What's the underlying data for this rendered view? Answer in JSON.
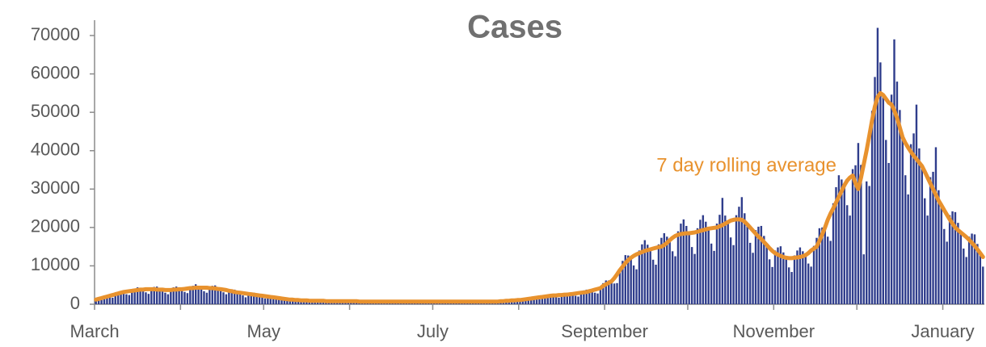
{
  "chart_data": {
    "type": "bar",
    "title": "Cases",
    "xlim": [
      0,
      321
    ],
    "xticks": [
      {
        "value": 0,
        "label": "March"
      },
      {
        "value": 61,
        "label": "May"
      },
      {
        "value": 122,
        "label": "July"
      },
      {
        "value": 184,
        "label": "September"
      },
      {
        "value": 245,
        "label": "November"
      },
      {
        "value": 306,
        "label": "January"
      }
    ],
    "minor_xticks": [
      31,
      92,
      153,
      214,
      275
    ],
    "ylim": [
      0,
      74000
    ],
    "yticks": [
      0,
      10000,
      20000,
      30000,
      40000,
      50000,
      60000,
      70000
    ],
    "series": [
      {
        "type": "bar",
        "color": "#2f3d8c",
        "values": [
          1300,
          1600,
          1900,
          2000,
          2000,
          1800,
          1700,
          2700,
          3200,
          3300,
          3200,
          2600,
          2400,
          3700,
          4100,
          4400,
          4200,
          3800,
          3100,
          2700,
          4100,
          4500,
          4600,
          4200,
          3800,
          3000,
          2600,
          3900,
          4400,
          4600,
          4300,
          3900,
          3200,
          2900,
          4400,
          4800,
          5200,
          4700,
          4300,
          3400,
          3000,
          4400,
          4800,
          4900,
          4400,
          4000,
          3100,
          2600,
          3700,
          3900,
          3800,
          3400,
          3000,
          2300,
          1800,
          2800,
          3000,
          3000,
          2600,
          2300,
          1800,
          1500,
          2100,
          2200,
          2200,
          2000,
          1600,
          1300,
          1000,
          1400,
          1400,
          1300,
          1200,
          1000,
          800,
          700,
          1100,
          1000,
          1100,
          1000,
          900,
          700,
          600,
          800,
          900,
          1000,
          900,
          800,
          600,
          600,
          500,
          700,
          800,
          800,
          800,
          700,
          600,
          500,
          700,
          800,
          800,
          800,
          700,
          600,
          500,
          700,
          800,
          800,
          800,
          700,
          600,
          500,
          700,
          800,
          800,
          800,
          700,
          600,
          500,
          700,
          800,
          800,
          800,
          700,
          600,
          500,
          700,
          800,
          800,
          800,
          700,
          600,
          500,
          700,
          800,
          800,
          800,
          700,
          600,
          500,
          700,
          800,
          800,
          800,
          700,
          600,
          500,
          700,
          800,
          800,
          1100,
          1000,
          900,
          800,
          1300,
          1500,
          1700,
          1700,
          1600,
          1400,
          1300,
          2000,
          2300,
          2500,
          2400,
          2300,
          1800,
          1700,
          2500,
          2900,
          3000,
          2900,
          2700,
          2200,
          2000,
          3200,
          3600,
          3800,
          3700,
          3600,
          3000,
          2800,
          4400,
          5500,
          6200,
          6200,
          6000,
          5400,
          5500,
          9300,
          11300,
          12800,
          12700,
          12100,
          10100,
          9100,
          14000,
          15600,
          16700,
          15500,
          14300,
          11600,
          10300,
          15600,
          17300,
          18500,
          17600,
          16700,
          13800,
          12500,
          19000,
          21000,
          22100,
          20400,
          18500,
          14900,
          13100,
          19800,
          22000,
          23200,
          21500,
          19700,
          15800,
          13900,
          21000,
          23300,
          27700,
          23100,
          21400,
          17400,
          15400,
          23200,
          25400,
          27900,
          23700,
          20800,
          16000,
          13400,
          19300,
          20200,
          20400,
          17800,
          15400,
          11700,
          9700,
          14000,
          14800,
          15100,
          13500,
          12100,
          9600,
          8400,
          12700,
          14000,
          14800,
          13800,
          12800,
          10600,
          9800,
          15200,
          17300,
          19800,
          20000,
          20000,
          17600,
          16500,
          26300,
          30500,
          33600,
          32500,
          31000,
          25800,
          23100,
          35200,
          36200,
          42000,
          36300,
          13000,
          32000,
          30800,
          50400,
          59200,
          72000,
          63000,
          54500,
          42800,
          36800,
          54600,
          69000,
          58000,
          50600,
          43500,
          33600,
          28600,
          41700,
          44500,
          52000,
          40600,
          36000,
          27600,
          23100,
          33100,
          34500,
          40900,
          29700,
          25800,
          19600,
          16300,
          23200,
          24200,
          24000,
          21200,
          18700,
          14500,
          12300,
          17600,
          18400,
          18200,
          15700,
          13300,
          9800
        ]
      },
      {
        "type": "line",
        "name": "7 day rolling average",
        "color": "#e8922e",
        "values": [
          1200,
          1400,
          1600,
          1800,
          2000,
          2200,
          2400,
          2600,
          2800,
          3000,
          3200,
          3300,
          3400,
          3500,
          3600,
          3700,
          3800,
          3800,
          3900,
          3900,
          3900,
          3900,
          3800,
          3800,
          3800,
          3700,
          3700,
          3700,
          3800,
          3800,
          3900,
          3900,
          4000,
          4100,
          4200,
          4200,
          4300,
          4300,
          4300,
          4300,
          4300,
          4200,
          4200,
          4100,
          4000,
          3900,
          3800,
          3700,
          3500,
          3400,
          3200,
          3100,
          3000,
          2900,
          2800,
          2700,
          2600,
          2500,
          2400,
          2300,
          2200,
          2100,
          2000,
          1900,
          1800,
          1700,
          1600,
          1500,
          1400,
          1300,
          1200,
          1200,
          1100,
          1100,
          1000,
          1000,
          1000,
          900,
          900,
          900,
          900,
          900,
          900,
          800,
          800,
          800,
          800,
          800,
          800,
          800,
          800,
          800,
          800,
          800,
          800,
          700,
          700,
          700,
          700,
          700,
          700,
          700,
          700,
          700,
          700,
          700,
          700,
          700,
          700,
          700,
          700,
          700,
          700,
          700,
          700,
          700,
          700,
          700,
          700,
          700,
          700,
          700,
          700,
          700,
          700,
          700,
          700,
          700,
          700,
          700,
          700,
          700,
          700,
          700,
          700,
          700,
          700,
          700,
          700,
          700,
          700,
          700,
          700,
          700,
          700,
          700,
          800,
          800,
          900,
          900,
          1000,
          1000,
          1100,
          1100,
          1200,
          1300,
          1400,
          1500,
          1600,
          1700,
          1800,
          1900,
          2000,
          2100,
          2200,
          2300,
          2300,
          2400,
          2400,
          2500,
          2500,
          2600,
          2700,
          2800,
          2900,
          3000,
          3100,
          3200,
          3400,
          3600,
          3800,
          4000,
          4200,
          4800,
          5200,
          5600,
          6000,
          6800,
          7800,
          8900,
          9800,
          10700,
          11500,
          12100,
          12600,
          13000,
          13300,
          13600,
          13900,
          14100,
          14300,
          14500,
          14700,
          14900,
          15000,
          15400,
          16000,
          16700,
          17300,
          17800,
          18100,
          18300,
          18400,
          18500,
          18500,
          18600,
          18700,
          18900,
          19100,
          19300,
          19500,
          19700,
          19800,
          19900,
          20000,
          20300,
          20600,
          21000,
          21400,
          21800,
          22000,
          22100,
          22100,
          22000,
          21500,
          20800,
          20000,
          19200,
          18400,
          17600,
          17000,
          16200,
          15400,
          14600,
          13900,
          13300,
          12900,
          12600,
          12300,
          12100,
          12000,
          12000,
          12100,
          12200,
          12300,
          12500,
          12800,
          13300,
          14000,
          14500,
          15000,
          16500,
          18200,
          20000,
          22000,
          23600,
          25000,
          26500,
          28000,
          29500,
          31000,
          32200,
          33000,
          33500,
          31500,
          30000,
          33000,
          36500,
          40000,
          44000,
          48000,
          51500,
          54000,
          55000,
          54500,
          53500,
          52500,
          52000,
          50500,
          48500,
          46000,
          43500,
          42000,
          40800,
          39700,
          38700,
          37800,
          36900,
          36000,
          34500,
          33000,
          31500,
          30000,
          28500,
          27000,
          25800,
          24500,
          23300,
          22100,
          21000,
          20000,
          19300,
          18700,
          18100,
          17500,
          16800,
          16000,
          15200,
          14300,
          13300,
          12300
        ]
      }
    ]
  }
}
